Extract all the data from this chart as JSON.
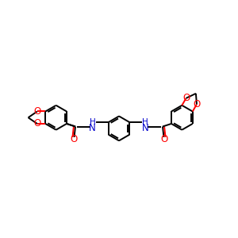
{
  "bg_color": "#ffffff",
  "bond_color": "#000000",
  "oxygen_color": "#ff0000",
  "nitrogen_color": "#0000cd",
  "line_width": 1.4,
  "font_size_atom": 8.5,
  "xlim": [
    0,
    10
  ],
  "ylim": [
    3.0,
    7.5
  ]
}
